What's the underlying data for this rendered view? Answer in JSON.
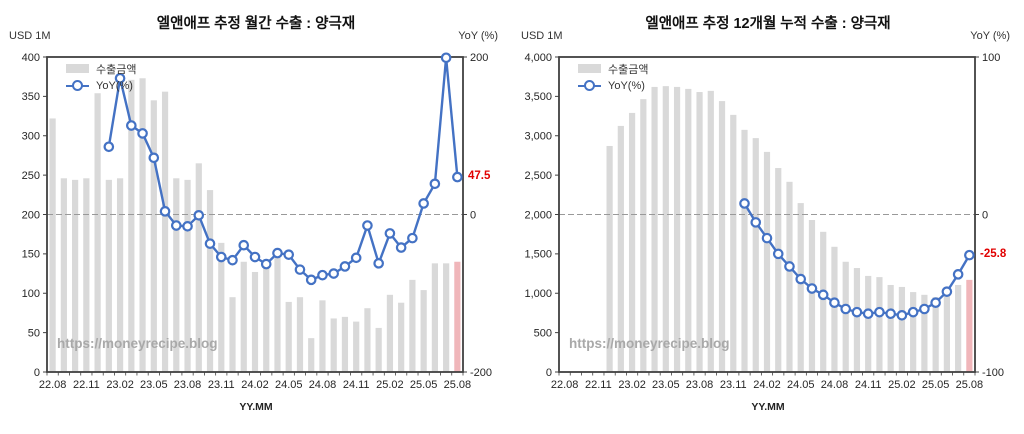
{
  "watermark": "https://moneyrecipe.blog",
  "colors": {
    "bar": "#d9d9d9",
    "bar_highlight": "#f0b6ba",
    "line": "#4472c4",
    "annotation_red": "#e10000",
    "axis": "#404040",
    "gridline": "#999999",
    "tick_text": "#262626"
  },
  "chart_data": [
    {
      "type": "bar+line",
      "title": "엘앤애프 추정 월간 수출 : 양극재",
      "left_unit": "USD 1M",
      "right_unit": "YoY (%)",
      "xlabel": "YY.MM",
      "legend": [
        "수출금액",
        "YoY(%)"
      ],
      "annotation": "47.5",
      "x_tick_every": 3,
      "highlight_last_bar": true,
      "grid": "zero-line-only",
      "legend_position": "top-left-inside",
      "y_left": {
        "min": 0,
        "max": 400,
        "step": 50,
        "comma": false
      },
      "y_right": {
        "min": -200,
        "max": 200,
        "step": 200
      },
      "categories": [
        "22.08",
        "22.09",
        "22.10",
        "22.11",
        "22.12",
        "23.01",
        "23.02",
        "23.03",
        "23.04",
        "23.05",
        "23.06",
        "23.07",
        "23.08",
        "23.09",
        "23.10",
        "23.11",
        "23.12",
        "24.01",
        "24.02",
        "24.03",
        "24.04",
        "24.05",
        "24.06",
        "24.07",
        "24.08",
        "24.09",
        "24.10",
        "24.11",
        "24.12",
        "25.01",
        "25.02",
        "25.03",
        "25.04",
        "25.05",
        "25.06",
        "25.07",
        "25.08"
      ],
      "series": [
        {
          "name": "수출금액",
          "type": "bar",
          "axis": "left",
          "values": [
            322,
            246,
            244,
            246,
            354,
            244,
            246,
            371,
            373,
            345,
            356,
            246,
            244,
            265,
            231,
            164,
            95,
            140,
            127,
            142,
            145,
            89,
            95,
            43,
            91,
            68,
            70,
            64,
            81,
            56,
            98,
            88,
            117,
            104,
            138,
            138,
            140
          ]
        },
        {
          "name": "YoY(%)",
          "type": "line",
          "axis": "right",
          "values": [
            null,
            null,
            null,
            null,
            null,
            86,
            173,
            113,
            103,
            72,
            4,
            -14,
            -15,
            -1,
            -37,
            -54,
            -58,
            -39,
            -54,
            -63,
            -49,
            -51,
            -70,
            -83,
            -77,
            -75,
            -66,
            -55,
            -14,
            -62,
            -24,
            -42,
            -30,
            14,
            39,
            199,
            47.5
          ]
        }
      ]
    },
    {
      "type": "bar+line",
      "title": "엘앤애프 추정 12개월 누적 수출 : 양극재",
      "left_unit": "USD 1M",
      "right_unit": "YoY (%)",
      "xlabel": "YY.MM",
      "legend": [
        "수출금액",
        "YoY(%)"
      ],
      "annotation": "-25.8",
      "x_tick_every": 3,
      "highlight_last_bar": true,
      "grid": "zero-line-only",
      "legend_position": "top-left-inside",
      "y_left": {
        "min": 0,
        "max": 4000,
        "step": 500,
        "comma": true
      },
      "y_right": {
        "min": -100,
        "max": 100,
        "step": 100
      },
      "categories": [
        "22.08",
        "22.09",
        "22.10",
        "22.11",
        "22.12",
        "23.01",
        "23.02",
        "23.03",
        "23.04",
        "23.05",
        "23.06",
        "23.07",
        "23.08",
        "23.09",
        "23.10",
        "23.11",
        "23.12",
        "24.01",
        "24.02",
        "24.03",
        "24.04",
        "24.05",
        "24.06",
        "24.07",
        "24.08",
        "24.09",
        "24.10",
        "24.11",
        "24.12",
        "25.01",
        "25.02",
        "25.03",
        "25.04",
        "25.05",
        "25.06",
        "25.07",
        "25.08"
      ],
      "series": [
        {
          "name": "수출금액",
          "type": "bar",
          "axis": "left",
          "values": [
            null,
            null,
            null,
            null,
            2870,
            3125,
            3290,
            3465,
            3620,
            3630,
            3620,
            3595,
            3555,
            3570,
            3440,
            3265,
            3075,
            2970,
            2795,
            2590,
            2415,
            2145,
            1930,
            1780,
            1590,
            1400,
            1320,
            1220,
            1205,
            1105,
            1080,
            1015,
            980,
            950,
            1055,
            1105,
            1170
          ]
        },
        {
          "name": "YoY(%)",
          "type": "line",
          "axis": "right",
          "values": [
            null,
            null,
            null,
            null,
            null,
            null,
            null,
            null,
            null,
            null,
            null,
            null,
            null,
            null,
            null,
            null,
            7,
            -5,
            -15,
            -25,
            -33,
            -41,
            -47,
            -51,
            -56,
            -60,
            -62,
            -63,
            -62,
            -63,
            -64,
            -62,
            -60,
            -56,
            -49,
            -38,
            -25.8
          ]
        }
      ]
    }
  ]
}
